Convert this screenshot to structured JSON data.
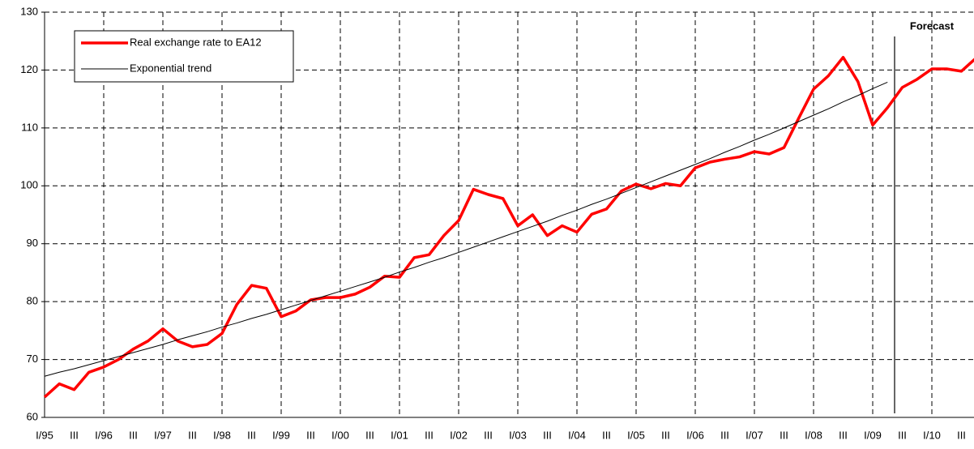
{
  "chart_data": {
    "type": "line",
    "annotation": "Forecast",
    "categories": [
      "I/95",
      null,
      "III",
      null,
      "I/96",
      null,
      "III",
      null,
      "I/97",
      null,
      "III",
      null,
      "I/98",
      null,
      "III",
      null,
      "I/99",
      null,
      "III",
      null,
      "I/00",
      null,
      "III",
      null,
      "I/01",
      null,
      "III",
      null,
      "I/02",
      null,
      "III",
      null,
      "I/03",
      null,
      "III",
      null,
      "I/04",
      null,
      "III",
      null,
      "I/05",
      null,
      "III",
      null,
      "I/06",
      null,
      "III",
      null,
      "I/07",
      null,
      "III",
      null,
      "I/08",
      null,
      "III",
      null,
      "I/09",
      null,
      "III",
      null,
      "I/10",
      null,
      "III",
      null
    ],
    "series": [
      {
        "name": "Real exchange rate to EA12",
        "color": "#ff0000",
        "width": 3.5,
        "values": [
          63.5,
          65.8,
          64.8,
          67.8,
          68.7,
          70.0,
          71.8,
          73.2,
          75.3,
          73.2,
          72.2,
          72.6,
          74.5,
          79.5,
          82.8,
          82.3,
          77.4,
          78.4,
          80.3,
          80.7,
          80.7,
          81.3,
          82.5,
          84.4,
          84.2,
          87.6,
          88.1,
          91.4,
          94.0,
          99.4,
          98.5,
          97.8,
          93.1,
          95.0,
          91.4,
          93.1,
          92.0,
          95.1,
          96.0,
          99.1,
          100.3,
          99.5,
          100.4,
          100.0,
          103.1,
          104.1,
          104.6,
          105.0,
          105.9,
          105.5,
          106.6,
          111.7,
          116.7,
          119.0,
          122.2,
          118.0,
          110.5,
          113.5,
          117.0,
          118.4,
          120.2,
          120.2,
          119.8,
          122.1
        ]
      },
      {
        "name": "Exponential trend",
        "color": "#000000",
        "width": 1,
        "values": [
          67.1,
          67.8,
          68.4,
          69.1,
          69.8,
          70.5,
          71.2,
          71.9,
          72.6,
          73.4,
          74.1,
          74.8,
          75.6,
          76.3,
          77.1,
          77.8,
          78.6,
          79.4,
          80.2,
          81.0,
          81.8,
          82.6,
          83.4,
          84.2,
          85.1,
          85.9,
          86.8,
          87.6,
          88.5,
          89.4,
          90.3,
          91.2,
          92.1,
          93.0,
          93.9,
          94.9,
          95.8,
          96.8,
          97.7,
          98.7,
          99.7,
          100.7,
          101.7,
          102.7,
          103.7,
          104.7,
          105.8,
          106.8,
          107.9,
          108.9,
          110.0,
          111.1,
          112.2,
          113.3,
          114.5,
          115.6,
          116.8,
          117.9,
          null,
          null,
          null,
          null,
          null,
          null
        ]
      }
    ],
    "ylim": [
      60,
      130
    ],
    "yticks": [
      60,
      70,
      80,
      90,
      100,
      110,
      120,
      130
    ],
    "grid": true,
    "legend": "top-left"
  }
}
